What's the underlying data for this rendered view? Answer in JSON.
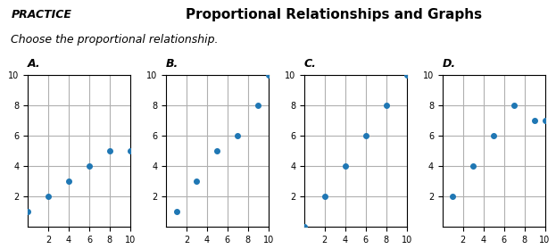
{
  "title": "Proportional Relationships and Graphs",
  "subtitle": "Choose the proportional relationship.",
  "annotations": [
    "PRACTICE"
  ],
  "chart_data": [
    {
      "type": "scatter",
      "title": "A.",
      "x": [
        0,
        2,
        4,
        6,
        8,
        10
      ],
      "values": [
        1,
        2,
        3,
        4,
        5,
        5
      ],
      "xlim": [
        0,
        10
      ],
      "ylim": [
        0,
        10
      ],
      "xticks": [
        2,
        4,
        6,
        8,
        10
      ],
      "yticks": [
        2,
        4,
        6,
        8,
        10
      ],
      "grid": true
    },
    {
      "type": "scatter",
      "title": "B.",
      "x": [
        1,
        3,
        5,
        7,
        9,
        10
      ],
      "values": [
        1,
        3,
        5,
        6,
        8,
        10
      ],
      "xlim": [
        0,
        10
      ],
      "ylim": [
        0,
        10
      ],
      "xticks": [
        2,
        4,
        6,
        8,
        10
      ],
      "yticks": [
        2,
        4,
        6,
        8,
        10
      ],
      "grid": true
    },
    {
      "type": "scatter",
      "title": "C.",
      "x": [
        0,
        2,
        4,
        6,
        8,
        10
      ],
      "values": [
        0,
        2,
        4,
        6,
        8,
        10
      ],
      "xlim": [
        0,
        10
      ],
      "ylim": [
        0,
        10
      ],
      "xticks": [
        2,
        4,
        6,
        8,
        10
      ],
      "yticks": [
        2,
        4,
        6,
        8,
        10
      ],
      "grid": true
    },
    {
      "type": "scatter",
      "title": "D.",
      "x": [
        1,
        3,
        5,
        7,
        9,
        10
      ],
      "values": [
        2,
        4,
        6,
        8,
        7,
        7
      ],
      "xlim": [
        0,
        10
      ],
      "ylim": [
        0,
        10
      ],
      "xticks": [
        2,
        4,
        6,
        8,
        10
      ],
      "yticks": [
        2,
        4,
        6,
        8,
        10
      ],
      "grid": true
    }
  ]
}
